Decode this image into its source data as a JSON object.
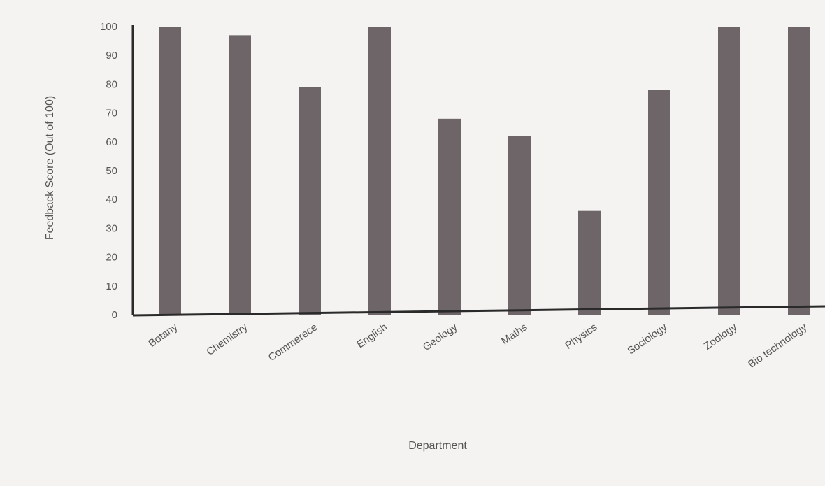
{
  "chart_data": {
    "type": "bar",
    "categories": [
      "Botany",
      "Chemistry",
      "Commerece",
      "English",
      "Geology",
      "Maths",
      "Physics",
      "Sociology",
      "Zoology",
      "Bio technology"
    ],
    "values": [
      100,
      97,
      79,
      100,
      68,
      62,
      36,
      78,
      100,
      100
    ],
    "title": "",
    "xlabel": "Department",
    "ylabel": "Feedback Score (Out of 100)",
    "ylim": [
      0,
      100
    ],
    "yticks": [
      0,
      10,
      20,
      30,
      40,
      50,
      60,
      70,
      80,
      90,
      100
    ],
    "grid": false,
    "legend": "none",
    "bar_color": "#6e6568",
    "axis_color": "#2a2a2a"
  }
}
